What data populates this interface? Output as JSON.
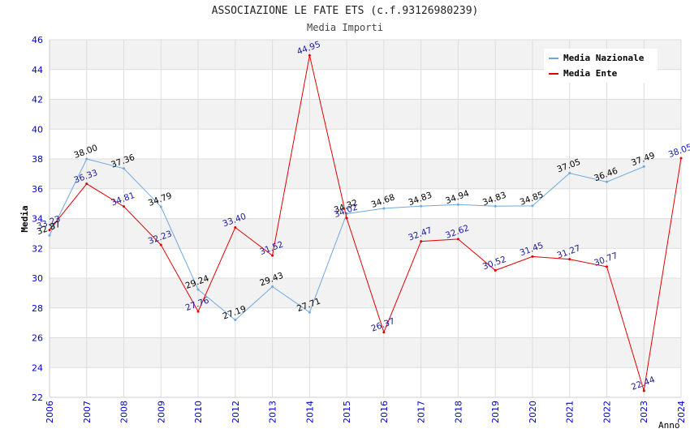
{
  "title": "ASSOCIAZIONE LE FATE ETS (c.f.93126980239)",
  "subtitle": "Media Importi",
  "chart_data": {
    "type": "line",
    "title": "ASSOCIAZIONE LE FATE ETS (c.f.93126980239)",
    "subtitle": "Media Importi",
    "xlabel": "Anno",
    "ylabel": "Media",
    "ylim": [
      22,
      46
    ],
    "yticks": [
      "22",
      "24",
      "26",
      "28",
      "30",
      "32",
      "34",
      "36",
      "38",
      "40",
      "42",
      "44",
      "46"
    ],
    "categories": [
      "2006",
      "2007",
      "2008",
      "2009",
      "2010",
      "2012",
      "2013",
      "2014",
      "2015",
      "2016",
      "2017",
      "2018",
      "2019",
      "2020",
      "2021",
      "2022",
      "2023",
      "2024"
    ],
    "grid": true,
    "legend_position": "top-right",
    "series": [
      {
        "name": "Media Nazionale",
        "color": "#6fa8dc",
        "label_color": "#000000",
        "values": [
          32.87,
          38.0,
          37.36,
          34.79,
          29.24,
          27.19,
          29.43,
          27.71,
          34.32,
          34.68,
          34.83,
          34.94,
          34.83,
          34.85,
          37.05,
          36.46,
          37.49,
          null
        ],
        "labels": [
          "32.87",
          "38.00",
          "37.36",
          "34.79",
          "29.24",
          "27.19",
          "29.43",
          "27.71",
          "34.32",
          "34.68",
          "34.83",
          "34.94",
          "34.83",
          "34.85",
          "37.05",
          "36.46",
          "37.49",
          ""
        ]
      },
      {
        "name": "Media Ente",
        "color": "#e00000",
        "label_color": "#1a1a99",
        "values": [
          33.23,
          36.33,
          34.81,
          32.23,
          27.76,
          33.4,
          31.52,
          44.95,
          34.02,
          26.37,
          32.47,
          32.62,
          30.52,
          31.45,
          31.27,
          30.77,
          22.44,
          38.05
        ],
        "labels": [
          "33.23",
          "36.33",
          "34.81",
          "32.23",
          "27.76",
          "33.40",
          "31.52",
          "44.95",
          "34.02",
          "26.37",
          "32.47",
          "32.62",
          "30.52",
          "31.45",
          "31.27",
          "30.77",
          "22.44",
          "38.05"
        ]
      }
    ],
    "colors": {
      "axis_label": "#0000cc",
      "grid_band": "#f2f2f2",
      "grid_line": "#dddddd"
    }
  }
}
